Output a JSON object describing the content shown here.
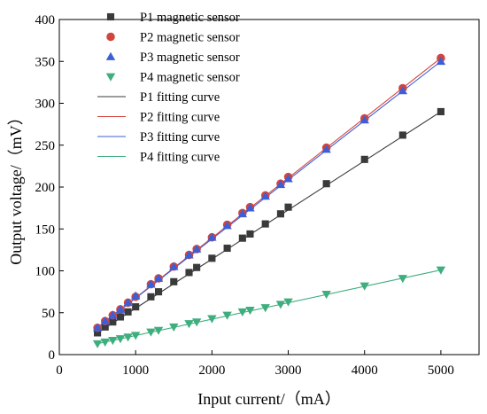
{
  "chart_data": {
    "type": "scatter",
    "xlabel": "Input current/（mA）",
    "ylabel": "Output voltage/（mV）",
    "xlim": [
      0,
      5500
    ],
    "ylim": [
      0,
      400
    ],
    "xticks": [
      0,
      1000,
      2000,
      3000,
      4000,
      5000
    ],
    "yticks": [
      0,
      50,
      100,
      150,
      200,
      250,
      300,
      350,
      400
    ],
    "grid": false,
    "legend_position": "top-left",
    "x": [
      500,
      600,
      700,
      800,
      900,
      1000,
      1200,
      1300,
      1500,
      1700,
      1800,
      2000,
      2200,
      2400,
      2500,
      2700,
      2900,
      3000,
      3500,
      4000,
      4500,
      5000
    ],
    "series": [
      {
        "name": "P1 magnetic sensor",
        "marker": "square",
        "color": "#3a3a3a",
        "values": [
          26,
          33,
          39,
          45,
          51,
          57,
          69,
          75,
          87,
          98,
          104,
          115,
          127,
          139,
          144,
          156,
          168,
          176,
          204,
          233,
          262,
          290
        ]
      },
      {
        "name": "P2 magnetic sensor",
        "marker": "circle",
        "color": "#d2453d",
        "values": [
          32,
          40,
          47,
          54,
          62,
          69,
          84,
          91,
          105,
          119,
          126,
          140,
          155,
          169,
          176,
          190,
          204,
          212,
          247,
          282,
          318,
          354
        ]
      },
      {
        "name": "P3 magnetic sensor",
        "marker": "triangle-up",
        "color": "#3d5fd6",
        "values": [
          32,
          40,
          47,
          54,
          62,
          70,
          84,
          91,
          105,
          119,
          126,
          140,
          154,
          168,
          175,
          189,
          203,
          210,
          245,
          280,
          315,
          350
        ]
      },
      {
        "name": "P4 magnetic sensor",
        "marker": "triangle-down",
        "color": "#3fae7e",
        "values": [
          13,
          15,
          17,
          19,
          21,
          23,
          27,
          29,
          33,
          37,
          39,
          43,
          47,
          51,
          53,
          56,
          60,
          63,
          72,
          82,
          91,
          101
        ]
      }
    ],
    "fitting_curves": [
      {
        "name": "P1 fitting curve",
        "color": "#3a3a3a",
        "x": [
          500,
          5000
        ],
        "y": [
          26,
          290
        ]
      },
      {
        "name": "P2 fitting curve",
        "color": "#d2453d",
        "x": [
          500,
          5000
        ],
        "y": [
          32,
          354
        ]
      },
      {
        "name": "P3 fitting curve",
        "color": "#3d5fd6",
        "x": [
          500,
          5000
        ],
        "y": [
          32,
          350
        ]
      },
      {
        "name": "P4 fitting curve",
        "color": "#3fae7e",
        "x": [
          500,
          5000
        ],
        "y": [
          13,
          101
        ]
      }
    ]
  }
}
